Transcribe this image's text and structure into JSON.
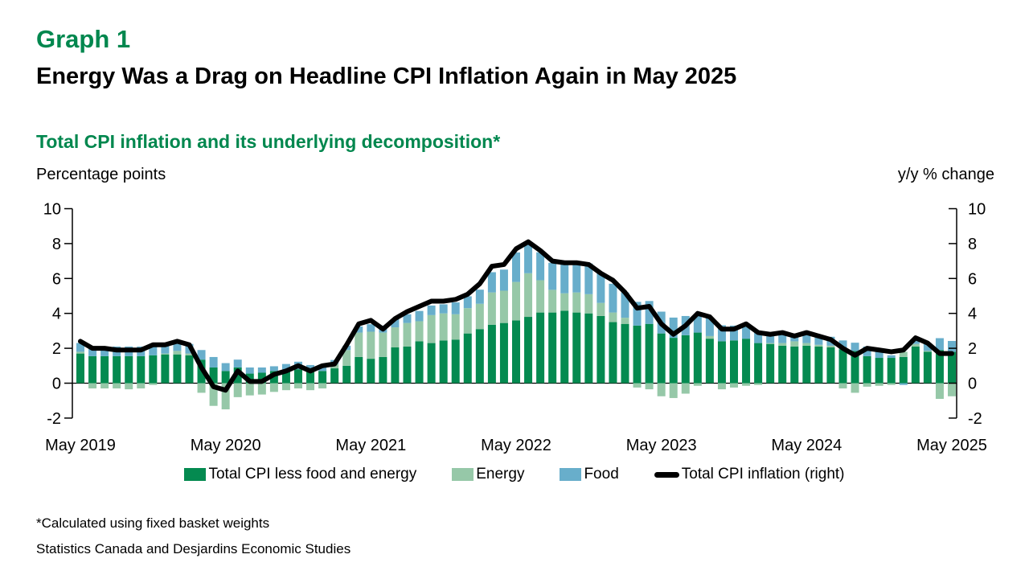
{
  "header": {
    "graph_label": "Graph 1",
    "title": "Energy Was a Drag on Headline CPI Inflation Again in May 2025"
  },
  "chart": {
    "subtitle": "Total CPI inflation and its underlying decomposition*",
    "left_axis_caption": "Percentage points",
    "right_axis_caption": "y/y % change"
  },
  "legend": [
    {
      "label": "Total CPI less food and energy",
      "swatch": "square",
      "color": "#048A50"
    },
    {
      "label": "Energy",
      "swatch": "square",
      "color": "#96C8A8"
    },
    {
      "label": "Food",
      "swatch": "square",
      "color": "#68AECB"
    },
    {
      "label": "Total CPI inflation (right)",
      "swatch": "line",
      "color": "#000000"
    }
  ],
  "footnotes": [
    "*Calculated using fixed basket weights",
    "Statistics Canada and Desjardins Economic Studies"
  ],
  "colors": {
    "title_green": "#00874E",
    "core_bar": "#048A50",
    "energy_bar": "#96C8A8",
    "food_bar": "#68AECB",
    "total_line": "#000000"
  },
  "chart_data": {
    "type": "bar",
    "subtype": "stacked-bars-with-line-overlay",
    "title": "Total CPI inflation and its underlying decomposition*",
    "xlabel": "",
    "ylabel_left": "Percentage points",
    "ylabel_right": "y/y % change",
    "ylim": [
      -2,
      10
    ],
    "yticks": [
      -2,
      0,
      2,
      4,
      6,
      8,
      10
    ],
    "grid": false,
    "legend_position": "bottom",
    "x_axis_tick_labels": [
      "May 2019",
      "May 2020",
      "May 2021",
      "May 2022",
      "May 2023",
      "May 2024",
      "May 2025"
    ],
    "x_months": [
      "May 2019",
      "Jun 2019",
      "Jul 2019",
      "Aug 2019",
      "Sep 2019",
      "Oct 2019",
      "Nov 2019",
      "Dec 2019",
      "Jan 2020",
      "Feb 2020",
      "Mar 2020",
      "Apr 2020",
      "May 2020",
      "Jun 2020",
      "Jul 2020",
      "Aug 2020",
      "Sep 2020",
      "Oct 2020",
      "Nov 2020",
      "Dec 2020",
      "Jan 2021",
      "Feb 2021",
      "Mar 2021",
      "Apr 2021",
      "May 2021",
      "Jun 2021",
      "Jul 2021",
      "Aug 2021",
      "Sep 2021",
      "Oct 2021",
      "Nov 2021",
      "Dec 2021",
      "Jan 2022",
      "Feb 2022",
      "Mar 2022",
      "Apr 2022",
      "May 2022",
      "Jun 2022",
      "Jul 2022",
      "Aug 2022",
      "Sep 2022",
      "Oct 2022",
      "Nov 2022",
      "Dec 2022",
      "Jan 2023",
      "Feb 2023",
      "Mar 2023",
      "Apr 2023",
      "May 2023",
      "Jun 2023",
      "Jul 2023",
      "Aug 2023",
      "Sep 2023",
      "Oct 2023",
      "Nov 2023",
      "Dec 2023",
      "Jan 2024",
      "Feb 2024",
      "Mar 2024",
      "Apr 2024",
      "May 2024",
      "Jun 2024",
      "Jul 2024",
      "Aug 2024",
      "Sep 2024",
      "Oct 2024",
      "Nov 2024",
      "Dec 2024",
      "Jan 2025",
      "Feb 2025",
      "Mar 2025",
      "Apr 2025",
      "May 2025"
    ],
    "series": [
      {
        "name": "Total CPI less food and energy",
        "type": "bar",
        "axis": "left",
        "color": "#048A50",
        "values": [
          1.7,
          1.55,
          1.55,
          1.55,
          1.55,
          1.55,
          1.6,
          1.65,
          1.65,
          1.6,
          1.35,
          0.9,
          0.7,
          0.9,
          0.55,
          0.6,
          0.7,
          0.75,
          0.8,
          0.7,
          0.7,
          0.85,
          1.0,
          1.5,
          1.4,
          1.5,
          2.05,
          2.1,
          2.4,
          2.3,
          2.45,
          2.5,
          2.85,
          3.1,
          3.35,
          3.45,
          3.6,
          3.8,
          4.05,
          4.05,
          4.15,
          4.05,
          4.0,
          3.85,
          3.5,
          3.4,
          3.3,
          3.4,
          2.85,
          2.6,
          2.75,
          2.9,
          2.55,
          2.4,
          2.45,
          2.55,
          2.3,
          2.25,
          2.15,
          2.1,
          2.15,
          2.1,
          2.05,
          1.95,
          1.85,
          1.55,
          1.45,
          1.45,
          1.5,
          2.1,
          1.8,
          1.9,
          1.8
        ]
      },
      {
        "name": "Energy",
        "type": "bar",
        "axis": "left",
        "color": "#96C8A8",
        "values": [
          0.1,
          -0.3,
          -0.3,
          -0.3,
          -0.35,
          -0.3,
          -0.1,
          0.05,
          0.2,
          0.1,
          -0.55,
          -1.3,
          -1.5,
          -0.8,
          -0.7,
          -0.65,
          -0.5,
          -0.4,
          -0.3,
          -0.4,
          -0.3,
          0.25,
          0.9,
          1.4,
          1.55,
          1.4,
          1.15,
          1.35,
          1.15,
          1.6,
          1.55,
          1.45,
          1.45,
          1.45,
          1.85,
          1.85,
          2.2,
          2.5,
          1.85,
          1.3,
          1.0,
          1.15,
          1.1,
          0.75,
          0.55,
          0.35,
          -0.25,
          -0.35,
          -0.75,
          -0.85,
          -0.6,
          -0.15,
          0.15,
          -0.35,
          -0.25,
          -0.15,
          -0.1,
          0.05,
          0.15,
          0.3,
          0.15,
          0.1,
          0.1,
          -0.3,
          -0.55,
          -0.2,
          -0.15,
          -0.1,
          0.3,
          0.15,
          0.05,
          -0.9,
          -0.75
        ]
      },
      {
        "name": "Food",
        "type": "bar",
        "axis": "left",
        "color": "#68AECB",
        "values": [
          0.5,
          0.5,
          0.55,
          0.55,
          0.55,
          0.55,
          0.55,
          0.55,
          0.5,
          0.55,
          0.55,
          0.6,
          0.45,
          0.45,
          0.35,
          0.3,
          0.27,
          0.35,
          0.43,
          0.34,
          0.23,
          0.23,
          0.25,
          0.35,
          0.43,
          0.4,
          0.48,
          0.5,
          0.59,
          0.55,
          0.52,
          0.68,
          0.68,
          0.81,
          1.16,
          1.21,
          1.69,
          1.7,
          1.6,
          1.55,
          1.85,
          1.75,
          1.76,
          1.73,
          1.65,
          1.45,
          1.36,
          1.31,
          1.25,
          1.16,
          1.1,
          1.05,
          1.05,
          0.92,
          0.85,
          0.8,
          0.61,
          0.52,
          0.5,
          0.45,
          0.5,
          0.52,
          0.51,
          0.5,
          0.47,
          0.55,
          0.45,
          0.15,
          -0.1,
          0.3,
          0.45,
          0.68,
          0.62
        ]
      },
      {
        "name": "Total CPI inflation (right)",
        "type": "line",
        "axis": "right",
        "color": "#000000",
        "values": [
          2.4,
          2.0,
          2.0,
          1.9,
          1.9,
          1.9,
          2.2,
          2.2,
          2.4,
          2.2,
          0.9,
          -0.2,
          -0.4,
          0.7,
          0.1,
          0.1,
          0.5,
          0.7,
          1.0,
          0.7,
          1.0,
          1.1,
          2.2,
          3.4,
          3.6,
          3.1,
          3.7,
          4.1,
          4.4,
          4.7,
          4.7,
          4.8,
          5.1,
          5.7,
          6.7,
          6.8,
          7.7,
          8.1,
          7.6,
          7.0,
          6.9,
          6.9,
          6.8,
          6.3,
          5.9,
          5.2,
          4.3,
          4.4,
          3.4,
          2.8,
          3.3,
          4.0,
          3.8,
          3.1,
          3.1,
          3.4,
          2.9,
          2.8,
          2.9,
          2.7,
          2.9,
          2.7,
          2.5,
          2.0,
          1.6,
          2.0,
          1.9,
          1.8,
          1.9,
          2.6,
          2.3,
          1.7,
          1.7
        ]
      }
    ]
  }
}
